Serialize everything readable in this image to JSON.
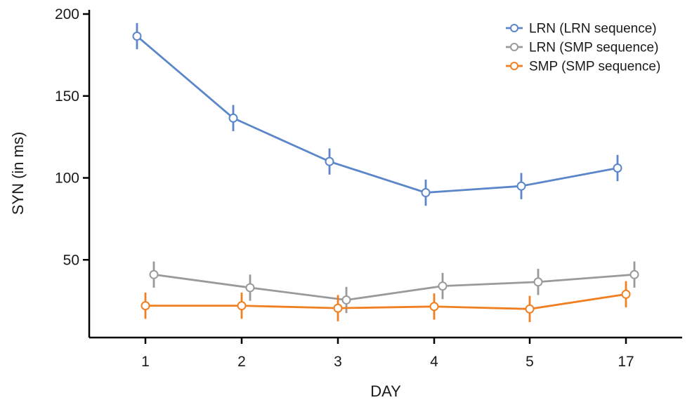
{
  "chart_data": {
    "type": "line",
    "xlabel": "DAY",
    "ylabel": "SYN (in ms)",
    "categories": [
      "1",
      "2",
      "3",
      "4",
      "5",
      "17"
    ],
    "yticks": [
      50,
      100,
      150,
      200
    ],
    "ylim": [
      0,
      200
    ],
    "grid": false,
    "legend_position": "top-right",
    "series": [
      {
        "name": "LRN (LRN sequence)",
        "color": "#5b86c9",
        "values": [
          186.5,
          136.5,
          110,
          91,
          95,
          106
        ],
        "errors": [
          8,
          8,
          8,
          8,
          8,
          8
        ]
      },
      {
        "name": "LRN (SMP sequence)",
        "color": "#9a9a9a",
        "values": [
          41,
          33,
          25.5,
          34,
          36.5,
          41
        ],
        "errors": [
          8,
          8,
          8,
          8,
          8,
          8
        ]
      },
      {
        "name": "SMP (SMP sequence)",
        "color": "#f07f21",
        "values": [
          22,
          22,
          20.5,
          21.5,
          20,
          29
        ],
        "errors": [
          8,
          8,
          8,
          8,
          8,
          8
        ]
      }
    ]
  }
}
